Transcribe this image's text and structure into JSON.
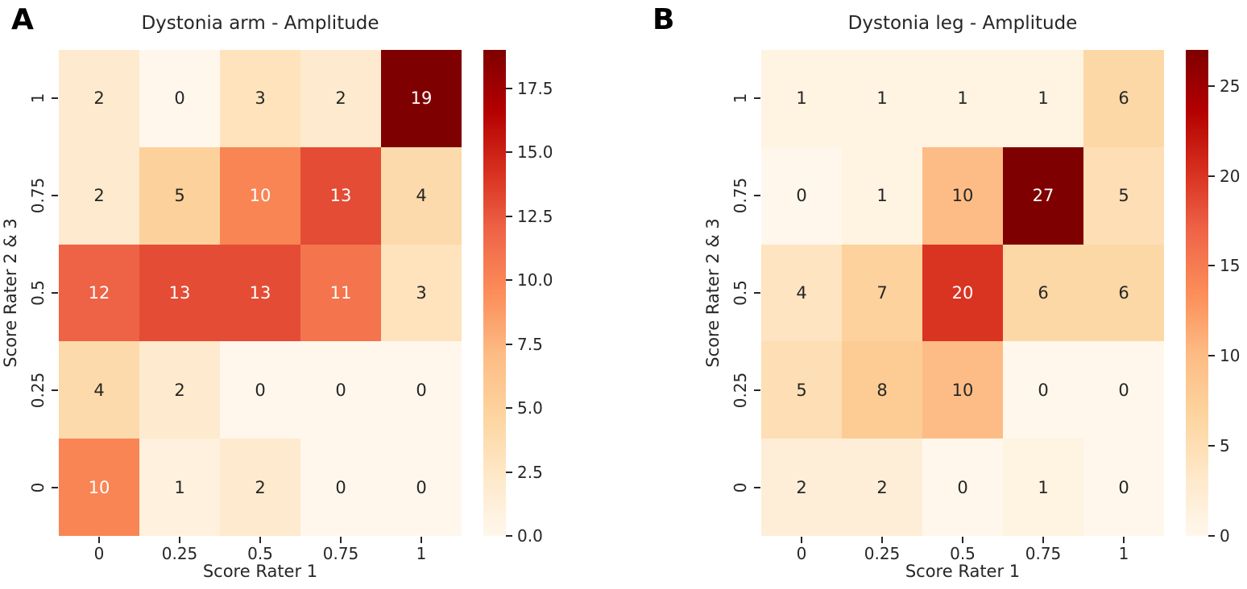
{
  "figure": {
    "background": "#ffffff",
    "panel_letters": [
      "A",
      "B"
    ]
  },
  "colormap": {
    "name": "OrRd",
    "stops": [
      "#fff7ec",
      "#fee8c8",
      "#fdd49e",
      "#fdbb84",
      "#fc8d59",
      "#ef6548",
      "#d7301f",
      "#b30000",
      "#7f0000"
    ],
    "annotation_dark_color": "#262626",
    "annotation_light_color": "#ffffff"
  },
  "chart_data": [
    {
      "type": "heatmap",
      "letter": "A",
      "title": "Dystonia arm - Amplitude",
      "xlabel": "Score Rater 1",
      "ylabel": "Score Rater 2 & 3",
      "x_tick_labels": [
        "0",
        "0.25",
        "0.5",
        "0.75",
        "1"
      ],
      "y_tick_labels": [
        "1",
        "0.75",
        "0.5",
        "0.25",
        "0"
      ],
      "matrix": [
        [
          2,
          0,
          3,
          2,
          19
        ],
        [
          2,
          5,
          10,
          13,
          4
        ],
        [
          12,
          13,
          13,
          11,
          3
        ],
        [
          4,
          2,
          0,
          0,
          0
        ],
        [
          10,
          1,
          2,
          0,
          0
        ]
      ],
      "vmin": 0,
      "vmax": 19,
      "colorbar_tick_labels": [
        "0.0",
        "2.5",
        "5.0",
        "7.5",
        "10.0",
        "12.5",
        "15.0",
        "17.5"
      ],
      "legend_position": "right",
      "grid": false
    },
    {
      "type": "heatmap",
      "letter": "B",
      "title": "Dystonia leg - Amplitude",
      "xlabel": "Score Rater 1",
      "ylabel": "Score Rater 2 & 3",
      "x_tick_labels": [
        "0",
        "0.25",
        "0.5",
        "0.75",
        "1"
      ],
      "y_tick_labels": [
        "1",
        "0.75",
        "0.5",
        "0.25",
        "0"
      ],
      "matrix": [
        [
          1,
          1,
          1,
          1,
          6
        ],
        [
          0,
          1,
          10,
          27,
          5
        ],
        [
          4,
          7,
          20,
          6,
          6
        ],
        [
          5,
          8,
          10,
          0,
          0
        ],
        [
          2,
          2,
          0,
          1,
          0
        ]
      ],
      "vmin": 0,
      "vmax": 27,
      "colorbar_tick_labels": [
        "0",
        "5",
        "10",
        "15",
        "20",
        "25"
      ],
      "legend_position": "right",
      "grid": false
    }
  ]
}
